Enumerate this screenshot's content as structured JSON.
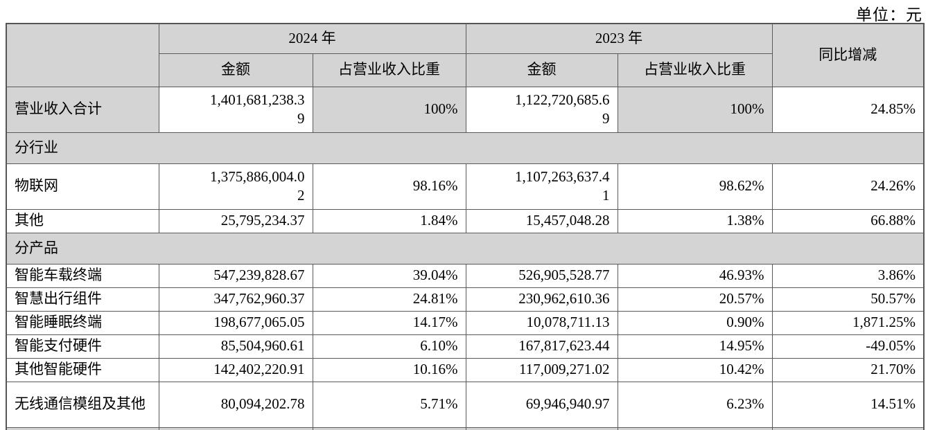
{
  "unit_label": "单位：元",
  "table": {
    "header": {
      "group_2024": "2024 年",
      "group_2023": "2023 年",
      "yoy": "同比增减",
      "amount": "金额",
      "ratio": "占营业收入比重"
    },
    "rows": [
      {
        "type": "data",
        "label": "营业收入合计",
        "a2024": "1,401,681,238.39",
        "r2024": "100%",
        "a2023": "1,122,720,685.69",
        "r2023": "100%",
        "yoy": "24.85%"
      },
      {
        "type": "section",
        "label": "分行业"
      },
      {
        "type": "data",
        "label": "物联网",
        "a2024": "1,375,886,004.02",
        "r2024": "98.16%",
        "a2023": "1,107,263,637.41",
        "r2023": "98.62%",
        "yoy": "24.26%"
      },
      {
        "type": "data",
        "label": "其他",
        "a2024": "25,795,234.37",
        "r2024": "1.84%",
        "a2023": "15,457,048.28",
        "r2023": "1.38%",
        "yoy": "66.88%"
      },
      {
        "type": "section",
        "label": "分产品"
      },
      {
        "type": "data",
        "label": "智能车载终端",
        "a2024": "547,239,828.67",
        "r2024": "39.04%",
        "a2023": "526,905,528.77",
        "r2023": "46.93%",
        "yoy": "3.86%"
      },
      {
        "type": "data",
        "label": "智慧出行组件",
        "a2024": "347,762,960.37",
        "r2024": "24.81%",
        "a2023": "230,962,610.36",
        "r2023": "20.57%",
        "yoy": "50.57%"
      },
      {
        "type": "data",
        "label": "智能睡眠终端",
        "a2024": "198,677,065.05",
        "r2024": "14.17%",
        "a2023": "10,078,711.13",
        "r2023": "0.90%",
        "yoy": "1,871.25%"
      },
      {
        "type": "data",
        "label": "智能支付硬件",
        "a2024": "85,504,960.61",
        "r2024": "6.10%",
        "a2023": "167,817,623.44",
        "r2023": "14.95%",
        "yoy": "-49.05%"
      },
      {
        "type": "data",
        "label": "其他智能硬件",
        "a2024": "142,402,220.91",
        "r2024": "10.16%",
        "a2023": "117,009,271.02",
        "r2023": "10.42%",
        "yoy": "21.70%"
      },
      {
        "type": "data",
        "label": "无线通信模组及其他",
        "a2024": "80,094,202.78",
        "r2024": "5.71%",
        "a2023": "69,946,940.97",
        "r2023": "6.23%",
        "yoy": "14.51%"
      }
    ]
  }
}
